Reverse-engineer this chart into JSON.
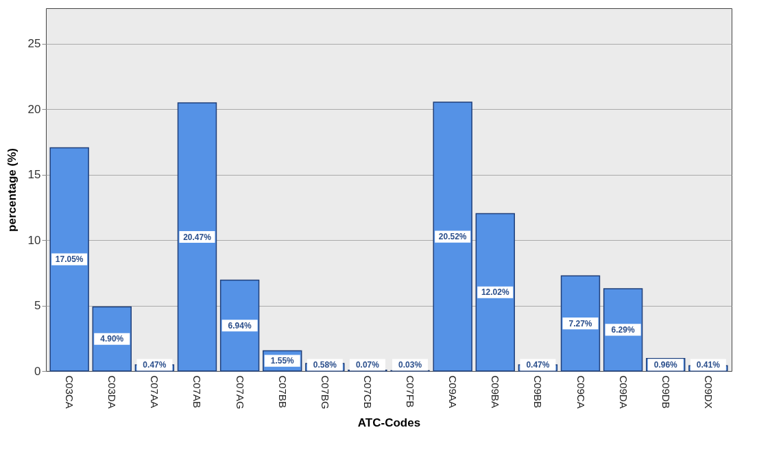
{
  "chart_data": {
    "type": "bar",
    "xlabel": "ATC-Codes",
    "ylabel": "percentage (%)",
    "categories": [
      "C03CA",
      "C03DA",
      "C07AA",
      "C07AB",
      "C07AG",
      "C07BB",
      "C07BG",
      "C07CB",
      "C07FB",
      "C09AA",
      "C09BA",
      "C09BB",
      "C09CA",
      "C09DA",
      "C09DB",
      "C09DX"
    ],
    "values": [
      17.05,
      4.9,
      0.47,
      20.47,
      6.94,
      1.55,
      0.58,
      0.07,
      0.03,
      20.52,
      12.02,
      0.47,
      7.27,
      6.29,
      0.96,
      0.41
    ],
    "value_labels": [
      "17.05%",
      "4.90%",
      "0.47%",
      "20.47%",
      "6.94%",
      "1.55%",
      "0.58%",
      "0.07%",
      "0.03%",
      "20.52%",
      "12.02%",
      "0.47%",
      "7.27%",
      "6.29%",
      "0.96%",
      "0.41%"
    ],
    "color": "#5592e6",
    "ylim": [
      0,
      27.7
    ],
    "yticks": [
      0,
      5,
      10,
      15,
      20,
      25
    ],
    "grid": "y"
  }
}
